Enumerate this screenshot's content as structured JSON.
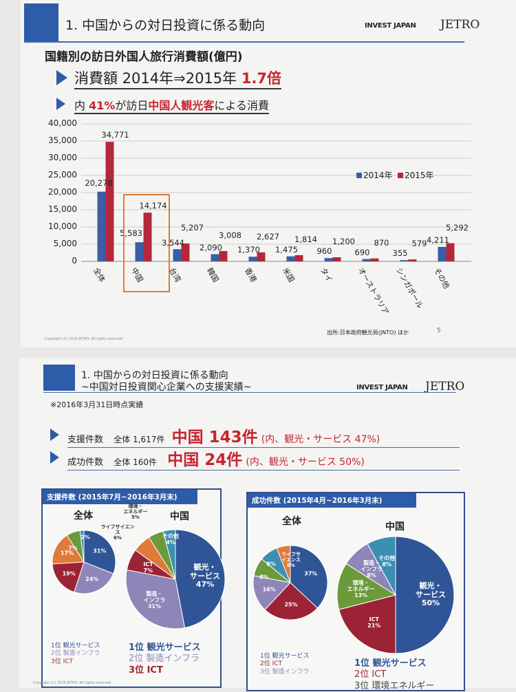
{
  "slide1": {
    "title": "1. 中国からの対日投資に係る動向",
    "logo_invest_japan": "INVEST JAPAN",
    "logo_jetro": "JETRO",
    "heading": "国籍別の訪日外国人旅行消費額(億円)",
    "bullet1": {
      "prefix": "消費額  2014年⇒2015年 ",
      "highlight": "1.7倍"
    },
    "bullet2": {
      "p1": "内 ",
      "h1": "41%",
      "p2": "が訪日",
      "h2": "中国人観光客",
      "p3": "による消費"
    },
    "source": "出所:日本政府観光局(JNTO) ほか",
    "page": "5",
    "copyright": "Copyright (C) 2016 JETRO. All rights reserved"
  },
  "chart_data": [
    {
      "type": "bar",
      "categories": [
        "全体",
        "中国",
        "台湾",
        "韓国",
        "香港",
        "米国",
        "タイ",
        "オーストラリア",
        "シンガポール",
        "その他"
      ],
      "series": [
        {
          "name": "2014年",
          "color": "#3b5ea8",
          "values": [
            20278,
            5583,
            3544,
            2090,
            1370,
            1475,
            960,
            690,
            355,
            4211
          ]
        },
        {
          "name": "2015年",
          "color": "#b5283a",
          "values": [
            34771,
            14174,
            5207,
            3008,
            2627,
            1814,
            1200,
            870,
            579,
            5292
          ]
        }
      ],
      "data_labels": {
        "2014年": [
          "20,278",
          "5,583",
          "3,544",
          "2,090",
          "1,370",
          "1,475",
          "960",
          "690",
          "355",
          "4,211"
        ],
        "2015年": [
          "34,771",
          "14,174",
          "5,207",
          "3,008",
          "2,627",
          "1,814",
          "1,200",
          "870",
          "579",
          "5,292"
        ]
      },
      "yticks": [
        "0",
        "5,000",
        "10,000",
        "15,000",
        "20,000",
        "25,000",
        "30,000",
        "35,000",
        "40,000"
      ],
      "ylim": [
        0,
        40000
      ],
      "grid": true,
      "legend": "right",
      "highlighted_category": "中国"
    },
    {
      "type": "pie",
      "panel": "support",
      "title": "全体",
      "categories": [
        "観光サービス",
        "製造インフラ",
        "ICT",
        "ライフサイエンス",
        "環境エネルギー",
        "その他"
      ],
      "values": [
        31,
        24,
        19,
        17,
        7,
        2
      ],
      "labels": [
        "31%",
        "24%",
        "19%",
        "17%",
        "7%",
        "2%"
      ]
    },
    {
      "type": "pie",
      "panel": "support",
      "title": "中国",
      "categories": [
        "観光・サービス",
        "製造・インフラ",
        "ICT",
        "ライフサイエンス",
        "環境・エネルギー",
        "その他"
      ],
      "values": [
        47,
        31,
        7,
        6,
        5,
        4
      ],
      "labels": [
        "観光・\nサービス\n47%",
        "製造・\nインフラ\n31%",
        "ICT\n7%",
        "ライフサイエン\nス\n6%",
        "環境・\nエネルギー\n5%",
        "その他\n4%"
      ]
    },
    {
      "type": "pie",
      "panel": "success",
      "title": "全体",
      "categories": [
        "観光サービス",
        "ICT",
        "製造インフラ",
        "環境エネルギー",
        "その他",
        "ライフサイエンス"
      ],
      "values": [
        37,
        25,
        16,
        8,
        8,
        6
      ],
      "labels": [
        "37%",
        "25%",
        "16%",
        "8%",
        "8%",
        "ライフサ\nイエンス\n6%"
      ]
    },
    {
      "type": "pie",
      "panel": "success",
      "title": "中国",
      "categories": [
        "観光・サービス",
        "ICT",
        "環境・エネルギー",
        "製造・インフラ",
        "その他"
      ],
      "values": [
        50,
        21,
        13,
        8,
        8
      ],
      "labels": [
        "観光・\nサービス\n50%",
        "ICT\n21%",
        "環境・\nエネルギー\n13%",
        "製造・\nインフラ\n8%",
        "その他\n8%"
      ]
    }
  ],
  "pie_colors": {
    "観光": "#2f5597",
    "製造": "#8e86b8",
    "ICT": "#9b2335",
    "ライフ": "#e07a3a",
    "環境": "#6a9a3a",
    "その他": "#3b8fb0"
  },
  "slide2": {
    "title_line1": "1. 中国からの対日投資に係る動向",
    "title_line2": "~中国対日投資関心企業への支援実績~",
    "logo_invest_japan": "INVEST JAPAN",
    "logo_jetro": "JETRO",
    "note": "※2016年3月31日時点実績",
    "row1": {
      "label": "支援件数",
      "total": "全体 1,617件",
      "china": "中国 143件",
      "detail": "(内、観光・サービス 47%)"
    },
    "row2": {
      "label": "成功件数",
      "total": "全体 160件",
      "china": "中国  24件",
      "detail": "(内、観光・サービス 50%)"
    },
    "panel_support": {
      "title": "支援件数 (2015年7月~2016年3月末)",
      "overall_label": "全体",
      "china_label": "中国",
      "overall_ranks": [
        "1位 観光サービス",
        "2位 製造インフラ",
        "3位 ICT"
      ],
      "china_ranks": [
        "1位 観光サービス",
        "2位 製造インフラ",
        "3位 ICT"
      ]
    },
    "panel_success": {
      "title": "成功件数 (2015年4月~2016年3月末)",
      "overall_label": "全体",
      "china_label": "中国",
      "overall_ranks": [
        "1位 観光サービス",
        "2位 ICT",
        "3位 製造インフラ"
      ],
      "china_ranks": [
        "1位 観光サービス",
        "2位 ICT",
        "3位 環境エネルギー"
      ]
    },
    "copyright": "Copyright (C) 2016 JETRO. All rights reserved"
  }
}
